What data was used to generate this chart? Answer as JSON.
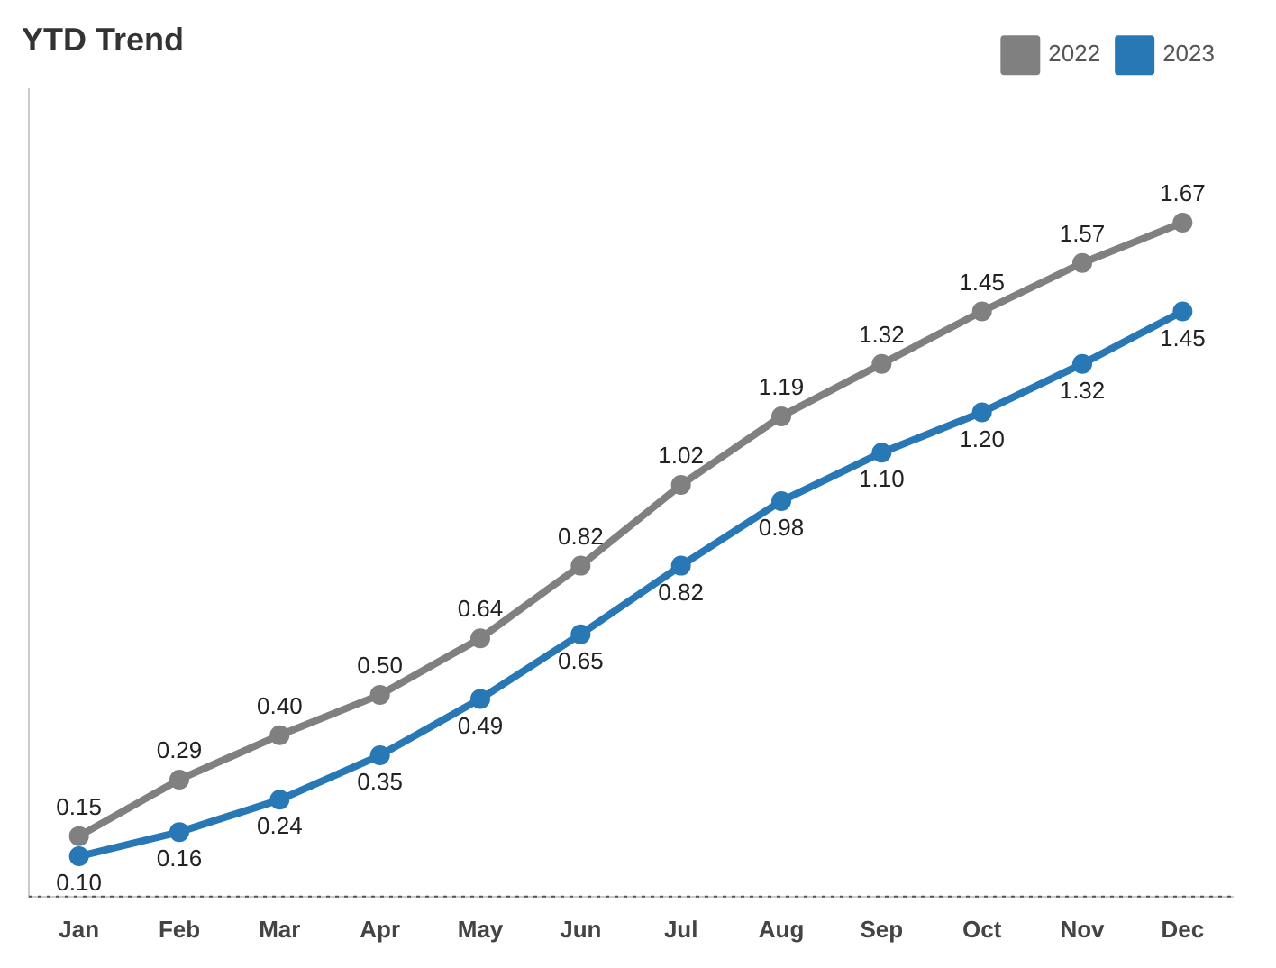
{
  "chart_data": {
    "type": "line",
    "title": "YTD Trend",
    "categories": [
      "Jan",
      "Feb",
      "Mar",
      "Apr",
      "May",
      "Jun",
      "Jul",
      "Aug",
      "Sep",
      "Oct",
      "Nov",
      "Dec"
    ],
    "series": [
      {
        "name": "2022",
        "color": "#808080",
        "values": [
          0.15,
          0.29,
          0.4,
          0.5,
          0.64,
          0.82,
          1.02,
          1.19,
          1.32,
          1.45,
          1.57,
          1.67
        ],
        "value_labels": [
          "0.15",
          "0.29",
          "0.40",
          "0.50",
          "0.64",
          "0.82",
          "1.02",
          "1.19",
          "1.32",
          "1.45",
          "1.57",
          "1.67"
        ]
      },
      {
        "name": "2023",
        "color": "#2878b5",
        "values": [
          0.1,
          0.16,
          0.24,
          0.35,
          0.49,
          0.65,
          0.82,
          0.98,
          1.1,
          1.2,
          1.32,
          1.45
        ],
        "value_labels": [
          "0.10",
          "0.16",
          "0.24",
          "0.35",
          "0.49",
          "0.65",
          "0.82",
          "0.98",
          "1.10",
          "1.20",
          "1.32",
          "1.45"
        ]
      }
    ],
    "ylim": [
      0,
      2
    ],
    "tick_labels": "x",
    "legend": "top right",
    "marker": "circle",
    "line_style": "solid",
    "grid": false,
    "ref_lines": [
      {
        "axis": "y",
        "value": 0,
        "line_style": "dotted",
        "color": "#555555"
      }
    ]
  }
}
